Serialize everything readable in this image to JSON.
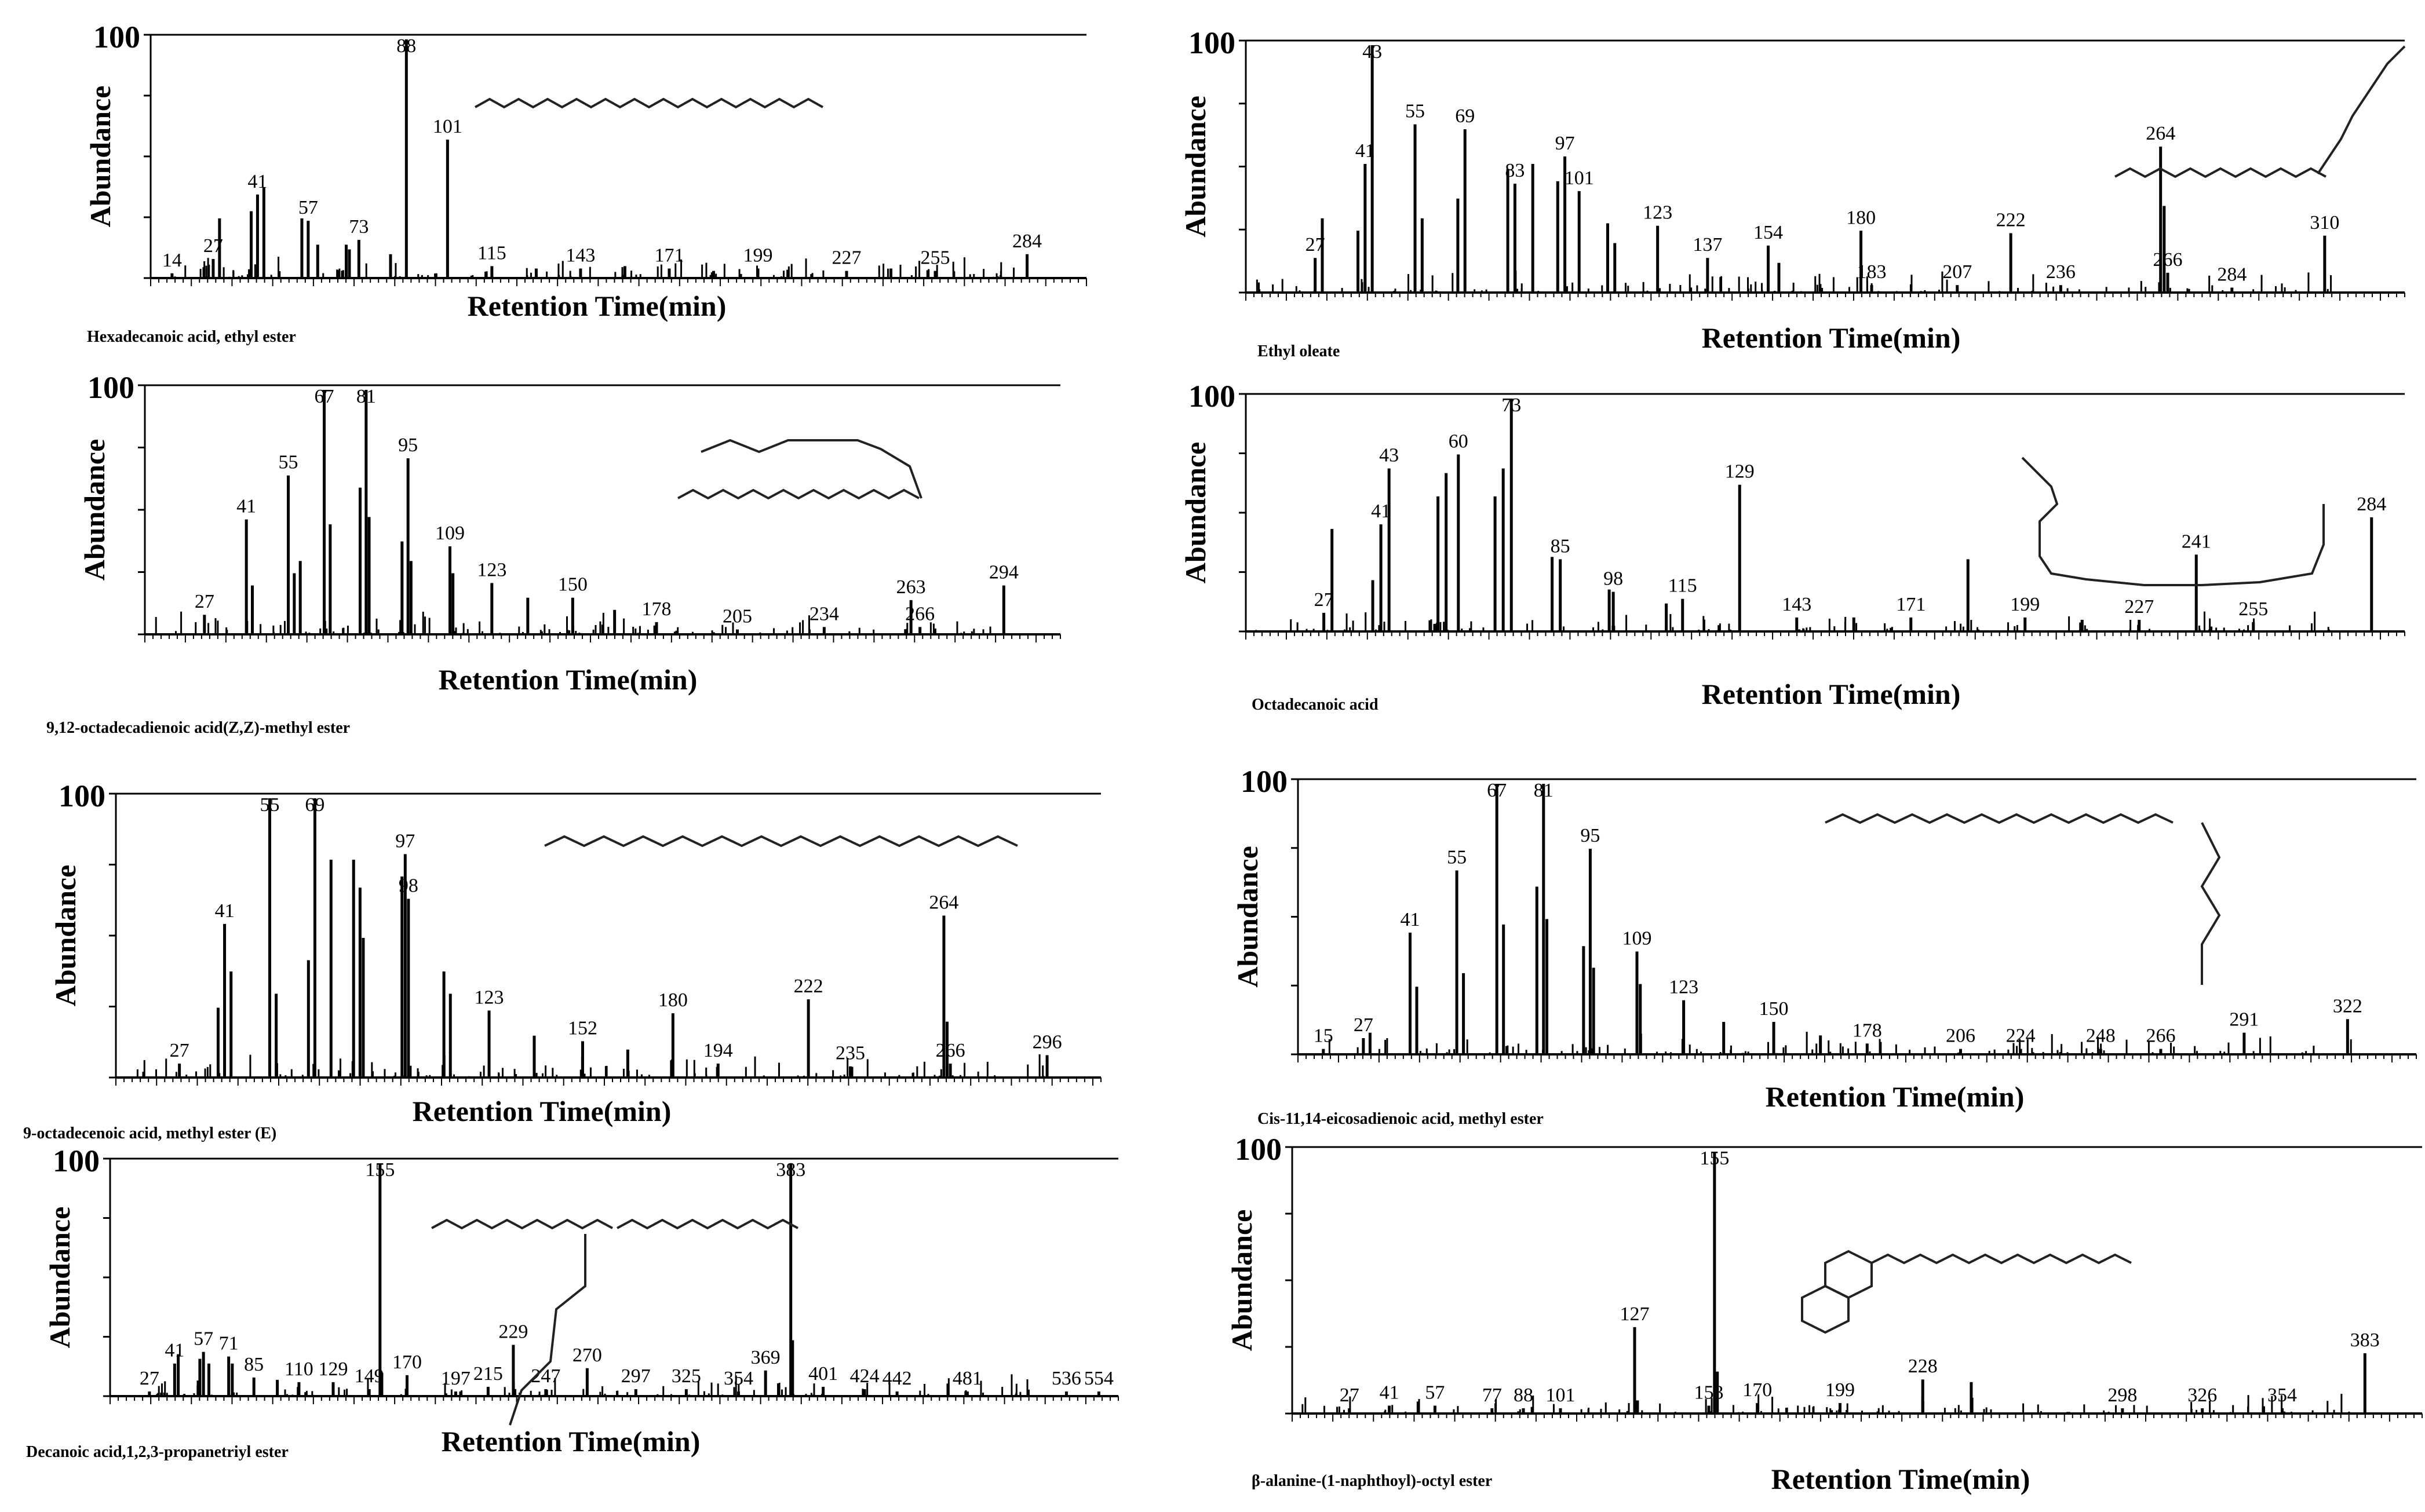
{
  "figure": {
    "description_free": true
  },
  "panels": [
    {
      "compound_name": "Hexadecanoic acid, ethyl ester"
    },
    {
      "compound_name": "Ethyl oleate"
    },
    {
      "compound_name": "9,12-octadecadienoic acid(Z,Z)-methyl ester"
    },
    {
      "compound_name": "Octadecanoic acid"
    },
    {
      "compound_name": "9-octadecenoic acid, methyl ester (E)"
    },
    {
      "compound_name": "Cis-11,14-eicosadienoic acid, methyl ester"
    },
    {
      "compound_name": "Decanoic acid,1,2,3-propanetriyl ester"
    },
    {
      "compound_name": "β-alanine-(1-naphthoyl)-octyl ester"
    }
  ],
  "chart_data": [
    {
      "type": "bar",
      "title": "Hexadecanoic acid, ethyl ester",
      "xlabel": "Retention Time(min)",
      "ylabel": "Abundance",
      "y_max_label": "100",
      "xlim": [
        10,
        300
      ],
      "ylim": [
        0,
        100
      ],
      "labels": [
        14,
        27,
        41,
        57,
        73,
        88,
        101,
        115,
        143,
        171,
        199,
        227,
        255,
        284
      ],
      "peaks": [
        {
          "x": 14,
          "y": 2
        },
        {
          "x": 27,
          "y": 8
        },
        {
          "x": 29,
          "y": 25
        },
        {
          "x": 39,
          "y": 28
        },
        {
          "x": 41,
          "y": 35
        },
        {
          "x": 43,
          "y": 38
        },
        {
          "x": 55,
          "y": 25
        },
        {
          "x": 57,
          "y": 24
        },
        {
          "x": 60,
          "y": 14
        },
        {
          "x": 69,
          "y": 14
        },
        {
          "x": 70,
          "y": 12
        },
        {
          "x": 73,
          "y": 16
        },
        {
          "x": 83,
          "y": 10
        },
        {
          "x": 88,
          "y": 100
        },
        {
          "x": 101,
          "y": 58
        },
        {
          "x": 115,
          "y": 5
        },
        {
          "x": 129,
          "y": 4
        },
        {
          "x": 143,
          "y": 4
        },
        {
          "x": 157,
          "y": 5
        },
        {
          "x": 171,
          "y": 4
        },
        {
          "x": 185,
          "y": 3
        },
        {
          "x": 199,
          "y": 4
        },
        {
          "x": 227,
          "y": 3
        },
        {
          "x": 241,
          "y": 4
        },
        {
          "x": 255,
          "y": 3
        },
        {
          "x": 284,
          "y": 10
        }
      ]
    },
    {
      "type": "bar",
      "title": "Ethyl oleate",
      "xlabel": "Retention Time(min)",
      "ylabel": "Abundance",
      "y_max_label": "100",
      "xlim": [
        10,
        330
      ],
      "ylim": [
        0,
        100
      ],
      "labels": [
        27,
        41,
        43,
        55,
        69,
        83,
        97,
        101,
        123,
        137,
        154,
        180,
        183,
        207,
        236,
        222,
        264,
        266,
        284,
        310
      ],
      "peaks": [
        {
          "x": 27,
          "y": 14
        },
        {
          "x": 29,
          "y": 30
        },
        {
          "x": 39,
          "y": 25
        },
        {
          "x": 41,
          "y": 52
        },
        {
          "x": 43,
          "y": 100
        },
        {
          "x": 55,
          "y": 68
        },
        {
          "x": 57,
          "y": 30
        },
        {
          "x": 67,
          "y": 38
        },
        {
          "x": 69,
          "y": 66
        },
        {
          "x": 81,
          "y": 50
        },
        {
          "x": 83,
          "y": 44
        },
        {
          "x": 88,
          "y": 52
        },
        {
          "x": 95,
          "y": 45
        },
        {
          "x": 97,
          "y": 55
        },
        {
          "x": 101,
          "y": 41
        },
        {
          "x": 109,
          "y": 28
        },
        {
          "x": 111,
          "y": 20
        },
        {
          "x": 123,
          "y": 27
        },
        {
          "x": 137,
          "y": 14
        },
        {
          "x": 154,
          "y": 19
        },
        {
          "x": 157,
          "y": 12
        },
        {
          "x": 180,
          "y": 25
        },
        {
          "x": 183,
          "y": 3
        },
        {
          "x": 207,
          "y": 3
        },
        {
          "x": 222,
          "y": 24
        },
        {
          "x": 236,
          "y": 3
        },
        {
          "x": 264,
          "y": 59
        },
        {
          "x": 265,
          "y": 35
        },
        {
          "x": 266,
          "y": 8
        },
        {
          "x": 284,
          "y": 2
        },
        {
          "x": 310,
          "y": 23
        }
      ]
    },
    {
      "type": "bar",
      "title": "9,12-octadecadienoic acid(Z,Z)-methyl ester",
      "xlabel": "Retention Time(min)",
      "ylabel": "Abundance",
      "y_max_label": "100",
      "xlim": [
        10,
        310
      ],
      "ylim": [
        0,
        100
      ],
      "labels": [
        27,
        41,
        55,
        67,
        81,
        95,
        109,
        123,
        150,
        178,
        205,
        234,
        263,
        266,
        294
      ],
      "peaks": [
        {
          "x": 27,
          "y": 8
        },
        {
          "x": 41,
          "y": 47
        },
        {
          "x": 43,
          "y": 20
        },
        {
          "x": 55,
          "y": 65
        },
        {
          "x": 57,
          "y": 25
        },
        {
          "x": 59,
          "y": 30
        },
        {
          "x": 67,
          "y": 100
        },
        {
          "x": 69,
          "y": 45
        },
        {
          "x": 79,
          "y": 60
        },
        {
          "x": 81,
          "y": 100
        },
        {
          "x": 82,
          "y": 48
        },
        {
          "x": 93,
          "y": 38
        },
        {
          "x": 95,
          "y": 72
        },
        {
          "x": 96,
          "y": 30
        },
        {
          "x": 109,
          "y": 36
        },
        {
          "x": 110,
          "y": 25
        },
        {
          "x": 123,
          "y": 21
        },
        {
          "x": 135,
          "y": 15
        },
        {
          "x": 150,
          "y": 15
        },
        {
          "x": 164,
          "y": 10
        },
        {
          "x": 178,
          "y": 5
        },
        {
          "x": 205,
          "y": 2
        },
        {
          "x": 234,
          "y": 3
        },
        {
          "x": 263,
          "y": 14
        },
        {
          "x": 266,
          "y": 3
        },
        {
          "x": 294,
          "y": 20
        }
      ]
    },
    {
      "type": "bar",
      "title": "Octadecanoic acid",
      "xlabel": "Retention Time(min)",
      "ylabel": "Abundance",
      "y_max_label": "100",
      "xlim": [
        10,
        290
      ],
      "ylim": [
        0,
        100
      ],
      "labels": [
        27,
        41,
        43,
        60,
        73,
        85,
        98,
        115,
        129,
        143,
        171,
        199,
        227,
        255,
        241,
        284
      ],
      "peaks": [
        {
          "x": 27,
          "y": 8
        },
        {
          "x": 29,
          "y": 44
        },
        {
          "x": 39,
          "y": 22
        },
        {
          "x": 41,
          "y": 46
        },
        {
          "x": 43,
          "y": 70
        },
        {
          "x": 55,
          "y": 58
        },
        {
          "x": 57,
          "y": 68
        },
        {
          "x": 60,
          "y": 76
        },
        {
          "x": 69,
          "y": 58
        },
        {
          "x": 71,
          "y": 70
        },
        {
          "x": 73,
          "y": 100
        },
        {
          "x": 83,
          "y": 32
        },
        {
          "x": 85,
          "y": 31
        },
        {
          "x": 97,
          "y": 18
        },
        {
          "x": 98,
          "y": 17
        },
        {
          "x": 111,
          "y": 12
        },
        {
          "x": 115,
          "y": 14
        },
        {
          "x": 129,
          "y": 63
        },
        {
          "x": 143,
          "y": 6
        },
        {
          "x": 157,
          "y": 6
        },
        {
          "x": 171,
          "y": 6
        },
        {
          "x": 185,
          "y": 31
        },
        {
          "x": 199,
          "y": 6
        },
        {
          "x": 213,
          "y": 5
        },
        {
          "x": 227,
          "y": 5
        },
        {
          "x": 241,
          "y": 33
        },
        {
          "x": 255,
          "y": 4
        },
        {
          "x": 284,
          "y": 49
        }
      ]
    },
    {
      "type": "bar",
      "title": "9-octadecenoic acid, methyl ester (E)",
      "xlabel": "Retention Time(min)",
      "ylabel": "Abundance",
      "y_max_label": "100",
      "xlim": [
        10,
        310
      ],
      "ylim": [
        0,
        100
      ],
      "labels": [
        27,
        41,
        55,
        69,
        97,
        98,
        123,
        152,
        180,
        194,
        222,
        235,
        266,
        264,
        296
      ],
      "peaks": [
        {
          "x": 27,
          "y": 5
        },
        {
          "x": 39,
          "y": 25
        },
        {
          "x": 41,
          "y": 55
        },
        {
          "x": 43,
          "y": 38
        },
        {
          "x": 55,
          "y": 100
        },
        {
          "x": 57,
          "y": 30
        },
        {
          "x": 67,
          "y": 42
        },
        {
          "x": 69,
          "y": 100
        },
        {
          "x": 74,
          "y": 78
        },
        {
          "x": 81,
          "y": 78
        },
        {
          "x": 83,
          "y": 68
        },
        {
          "x": 84,
          "y": 50
        },
        {
          "x": 96,
          "y": 72
        },
        {
          "x": 97,
          "y": 80
        },
        {
          "x": 98,
          "y": 64
        },
        {
          "x": 109,
          "y": 38
        },
        {
          "x": 111,
          "y": 30
        },
        {
          "x": 123,
          "y": 24
        },
        {
          "x": 137,
          "y": 15
        },
        {
          "x": 152,
          "y": 13
        },
        {
          "x": 166,
          "y": 10
        },
        {
          "x": 180,
          "y": 23
        },
        {
          "x": 194,
          "y": 5
        },
        {
          "x": 222,
          "y": 28
        },
        {
          "x": 235,
          "y": 4
        },
        {
          "x": 264,
          "y": 58
        },
        {
          "x": 265,
          "y": 20
        },
        {
          "x": 266,
          "y": 5
        },
        {
          "x": 296,
          "y": 8
        }
      ]
    },
    {
      "type": "bar",
      "title": "Cis-11,14-eicosadienoic acid, methyl ester",
      "xlabel": "Retention Time(min)",
      "ylabel": "Abundance",
      "y_max_label": "100",
      "xlim": [
        10,
        340
      ],
      "ylim": [
        0,
        100
      ],
      "labels": [
        15,
        27,
        41,
        55,
        67,
        81,
        95,
        109,
        123,
        150,
        178,
        206,
        224,
        248,
        266,
        291,
        322
      ],
      "peaks": [
        {
          "x": 15,
          "y": 2
        },
        {
          "x": 27,
          "y": 6
        },
        {
          "x": 29,
          "y": 8
        },
        {
          "x": 41,
          "y": 45
        },
        {
          "x": 43,
          "y": 25
        },
        {
          "x": 55,
          "y": 68
        },
        {
          "x": 57,
          "y": 30
        },
        {
          "x": 67,
          "y": 100
        },
        {
          "x": 69,
          "y": 48
        },
        {
          "x": 79,
          "y": 62
        },
        {
          "x": 81,
          "y": 100
        },
        {
          "x": 82,
          "y": 50
        },
        {
          "x": 93,
          "y": 40
        },
        {
          "x": 95,
          "y": 76
        },
        {
          "x": 96,
          "y": 32
        },
        {
          "x": 109,
          "y": 38
        },
        {
          "x": 110,
          "y": 26
        },
        {
          "x": 123,
          "y": 20
        },
        {
          "x": 135,
          "y": 12
        },
        {
          "x": 150,
          "y": 12
        },
        {
          "x": 164,
          "y": 7
        },
        {
          "x": 178,
          "y": 4
        },
        {
          "x": 206,
          "y": 2
        },
        {
          "x": 224,
          "y": 2
        },
        {
          "x": 248,
          "y": 2
        },
        {
          "x": 266,
          "y": 2
        },
        {
          "x": 291,
          "y": 8
        },
        {
          "x": 322,
          "y": 13
        }
      ]
    },
    {
      "type": "bar",
      "title": "Decanoic acid,1,2,3-propanetriyl ester",
      "xlabel": "Retention Time(min)",
      "ylabel": "Abundance",
      "y_max_label": "100",
      "xlim": [
        10,
        560
      ],
      "ylim": [
        0,
        100
      ],
      "labels": [
        27,
        41,
        57,
        71,
        85,
        110,
        129,
        149,
        155,
        170,
        197,
        215,
        229,
        247,
        270,
        297,
        325,
        354,
        369,
        383,
        401,
        424,
        442,
        481,
        536,
        554
      ],
      "peaks": [
        {
          "x": 27,
          "y": 2
        },
        {
          "x": 41,
          "y": 14
        },
        {
          "x": 43,
          "y": 18
        },
        {
          "x": 55,
          "y": 16
        },
        {
          "x": 57,
          "y": 19
        },
        {
          "x": 60,
          "y": 14
        },
        {
          "x": 71,
          "y": 17
        },
        {
          "x": 73,
          "y": 14
        },
        {
          "x": 85,
          "y": 8
        },
        {
          "x": 98,
          "y": 7
        },
        {
          "x": 110,
          "y": 6
        },
        {
          "x": 129,
          "y": 6
        },
        {
          "x": 149,
          "y": 3
        },
        {
          "x": 155,
          "y": 100
        },
        {
          "x": 156,
          "y": 10
        },
        {
          "x": 170,
          "y": 9
        },
        {
          "x": 197,
          "y": 2
        },
        {
          "x": 215,
          "y": 4
        },
        {
          "x": 229,
          "y": 22
        },
        {
          "x": 247,
          "y": 3
        },
        {
          "x": 270,
          "y": 12
        },
        {
          "x": 297,
          "y": 3
        },
        {
          "x": 325,
          "y": 3
        },
        {
          "x": 354,
          "y": 2
        },
        {
          "x": 369,
          "y": 11
        },
        {
          "x": 383,
          "y": 100
        },
        {
          "x": 384,
          "y": 24
        },
        {
          "x": 401,
          "y": 4
        },
        {
          "x": 424,
          "y": 3
        },
        {
          "x": 442,
          "y": 2
        },
        {
          "x": 481,
          "y": 2
        },
        {
          "x": 536,
          "y": 2
        },
        {
          "x": 554,
          "y": 2
        }
      ]
    },
    {
      "type": "bar",
      "title": "β-alanine-(1-naphthoyl)-octyl ester",
      "xlabel": "Retention Time(min)",
      "ylabel": "Abundance",
      "y_max_label": "100",
      "xlim": [
        10,
        400
      ],
      "ylim": [
        0,
        100
      ],
      "labels": [
        27,
        41,
        57,
        77,
        88,
        101,
        127,
        153,
        155,
        170,
        199,
        228,
        298,
        326,
        354,
        383
      ],
      "peaks": [
        {
          "x": 27,
          "y": 2
        },
        {
          "x": 41,
          "y": 3
        },
        {
          "x": 57,
          "y": 3
        },
        {
          "x": 77,
          "y": 2
        },
        {
          "x": 88,
          "y": 2
        },
        {
          "x": 101,
          "y": 2
        },
        {
          "x": 127,
          "y": 33
        },
        {
          "x": 128,
          "y": 5
        },
        {
          "x": 153,
          "y": 3
        },
        {
          "x": 155,
          "y": 100
        },
        {
          "x": 156,
          "y": 16
        },
        {
          "x": 170,
          "y": 4
        },
        {
          "x": 199,
          "y": 4
        },
        {
          "x": 228,
          "y": 13
        },
        {
          "x": 245,
          "y": 12
        },
        {
          "x": 298,
          "y": 2
        },
        {
          "x": 326,
          "y": 2
        },
        {
          "x": 354,
          "y": 2
        },
        {
          "x": 383,
          "y": 23
        }
      ]
    }
  ]
}
